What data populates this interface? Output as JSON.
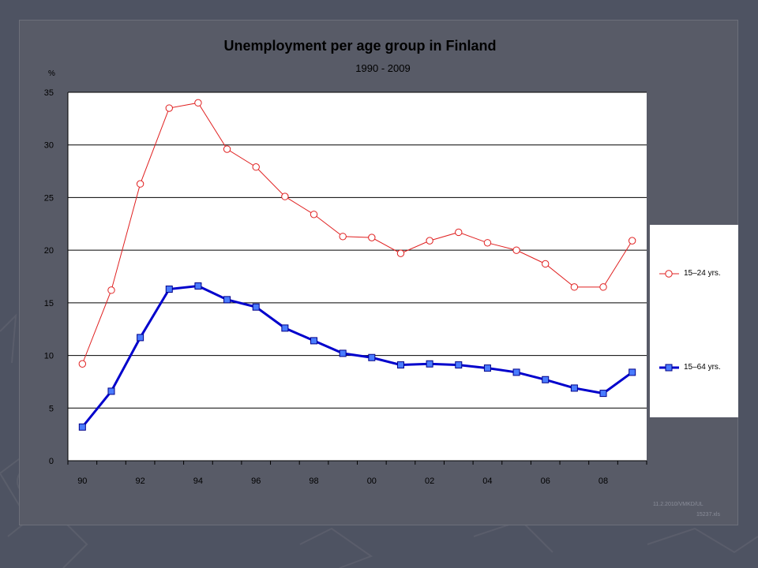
{
  "chart_data": {
    "type": "line",
    "title": "Unemployment per age group in Finland",
    "subtitle": "1990 - 2009",
    "ylabel": "%",
    "xlabel": "",
    "ylim": [
      0,
      35
    ],
    "yticks": [
      "0",
      "5",
      "10",
      "15",
      "20",
      "25",
      "30",
      "35"
    ],
    "xticks": [
      "90",
      "92",
      "94",
      "96",
      "98",
      "00",
      "02",
      "04",
      "06",
      "08"
    ],
    "x": [
      1990,
      1991,
      1992,
      1993,
      1994,
      1995,
      1996,
      1997,
      1998,
      1999,
      2000,
      2001,
      2002,
      2003,
      2004,
      2005,
      2006,
      2007,
      2008,
      2009
    ],
    "grid": true,
    "legend_position": "right",
    "series": [
      {
        "name": "15–24 yrs.",
        "color": "#e02020",
        "marker": "circle-open",
        "values": [
          9.2,
          16.2,
          26.3,
          33.5,
          34.0,
          29.6,
          27.9,
          25.1,
          23.4,
          21.3,
          21.2,
          19.7,
          20.9,
          21.7,
          20.7,
          20.0,
          18.7,
          16.5,
          16.5,
          20.9
        ]
      },
      {
        "name": "15–64 yrs.",
        "color": "#0000cc",
        "marker": "square-filled",
        "values": [
          3.2,
          6.6,
          11.7,
          16.3,
          16.6,
          15.3,
          14.6,
          12.6,
          11.4,
          10.2,
          9.8,
          9.1,
          9.2,
          9.1,
          8.8,
          8.4,
          7.7,
          6.9,
          6.4,
          8.4
        ]
      }
    ]
  },
  "footnote": {
    "line1": "11.2.2010/VMKD/UL",
    "line2": "15237.xls"
  }
}
